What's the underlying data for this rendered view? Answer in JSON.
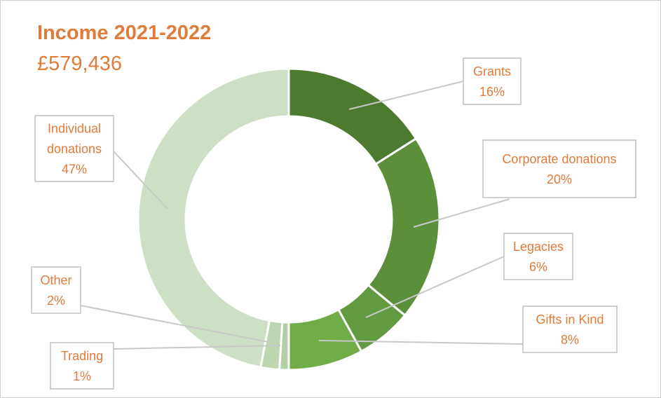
{
  "chart_data": {
    "type": "pie",
    "variant": "donut",
    "title": "Income 2021-2022",
    "subtitle": "£579,436",
    "slices": [
      {
        "label": "Grants",
        "value": 16,
        "value_label": "16%",
        "color": "#4e7a2f"
      },
      {
        "label": "Corporate donations",
        "value": 20,
        "value_label": "20%",
        "color": "#5b8f3a"
      },
      {
        "label": "Legacies",
        "value": 6,
        "value_label": "6%",
        "color": "#629a42"
      },
      {
        "label": "Gifts in Kind",
        "value": 8,
        "value_label": "8%",
        "color": "#70ad47"
      },
      {
        "label": "Trading",
        "value": 1,
        "value_label": "1%",
        "color": "#b4cfa7"
      },
      {
        "label": "Other",
        "value": 2,
        "value_label": "2%",
        "color": "#bdd6b1"
      },
      {
        "label": "Individual donations",
        "value": 47,
        "value_label": "47%",
        "color": "#cde0c6"
      }
    ],
    "legend": "none",
    "data_labels": "callouts"
  },
  "colors": {
    "label_text": "#e07b39",
    "callout_border": "#c0c0c0",
    "leader_line": "#c8c8c8"
  }
}
